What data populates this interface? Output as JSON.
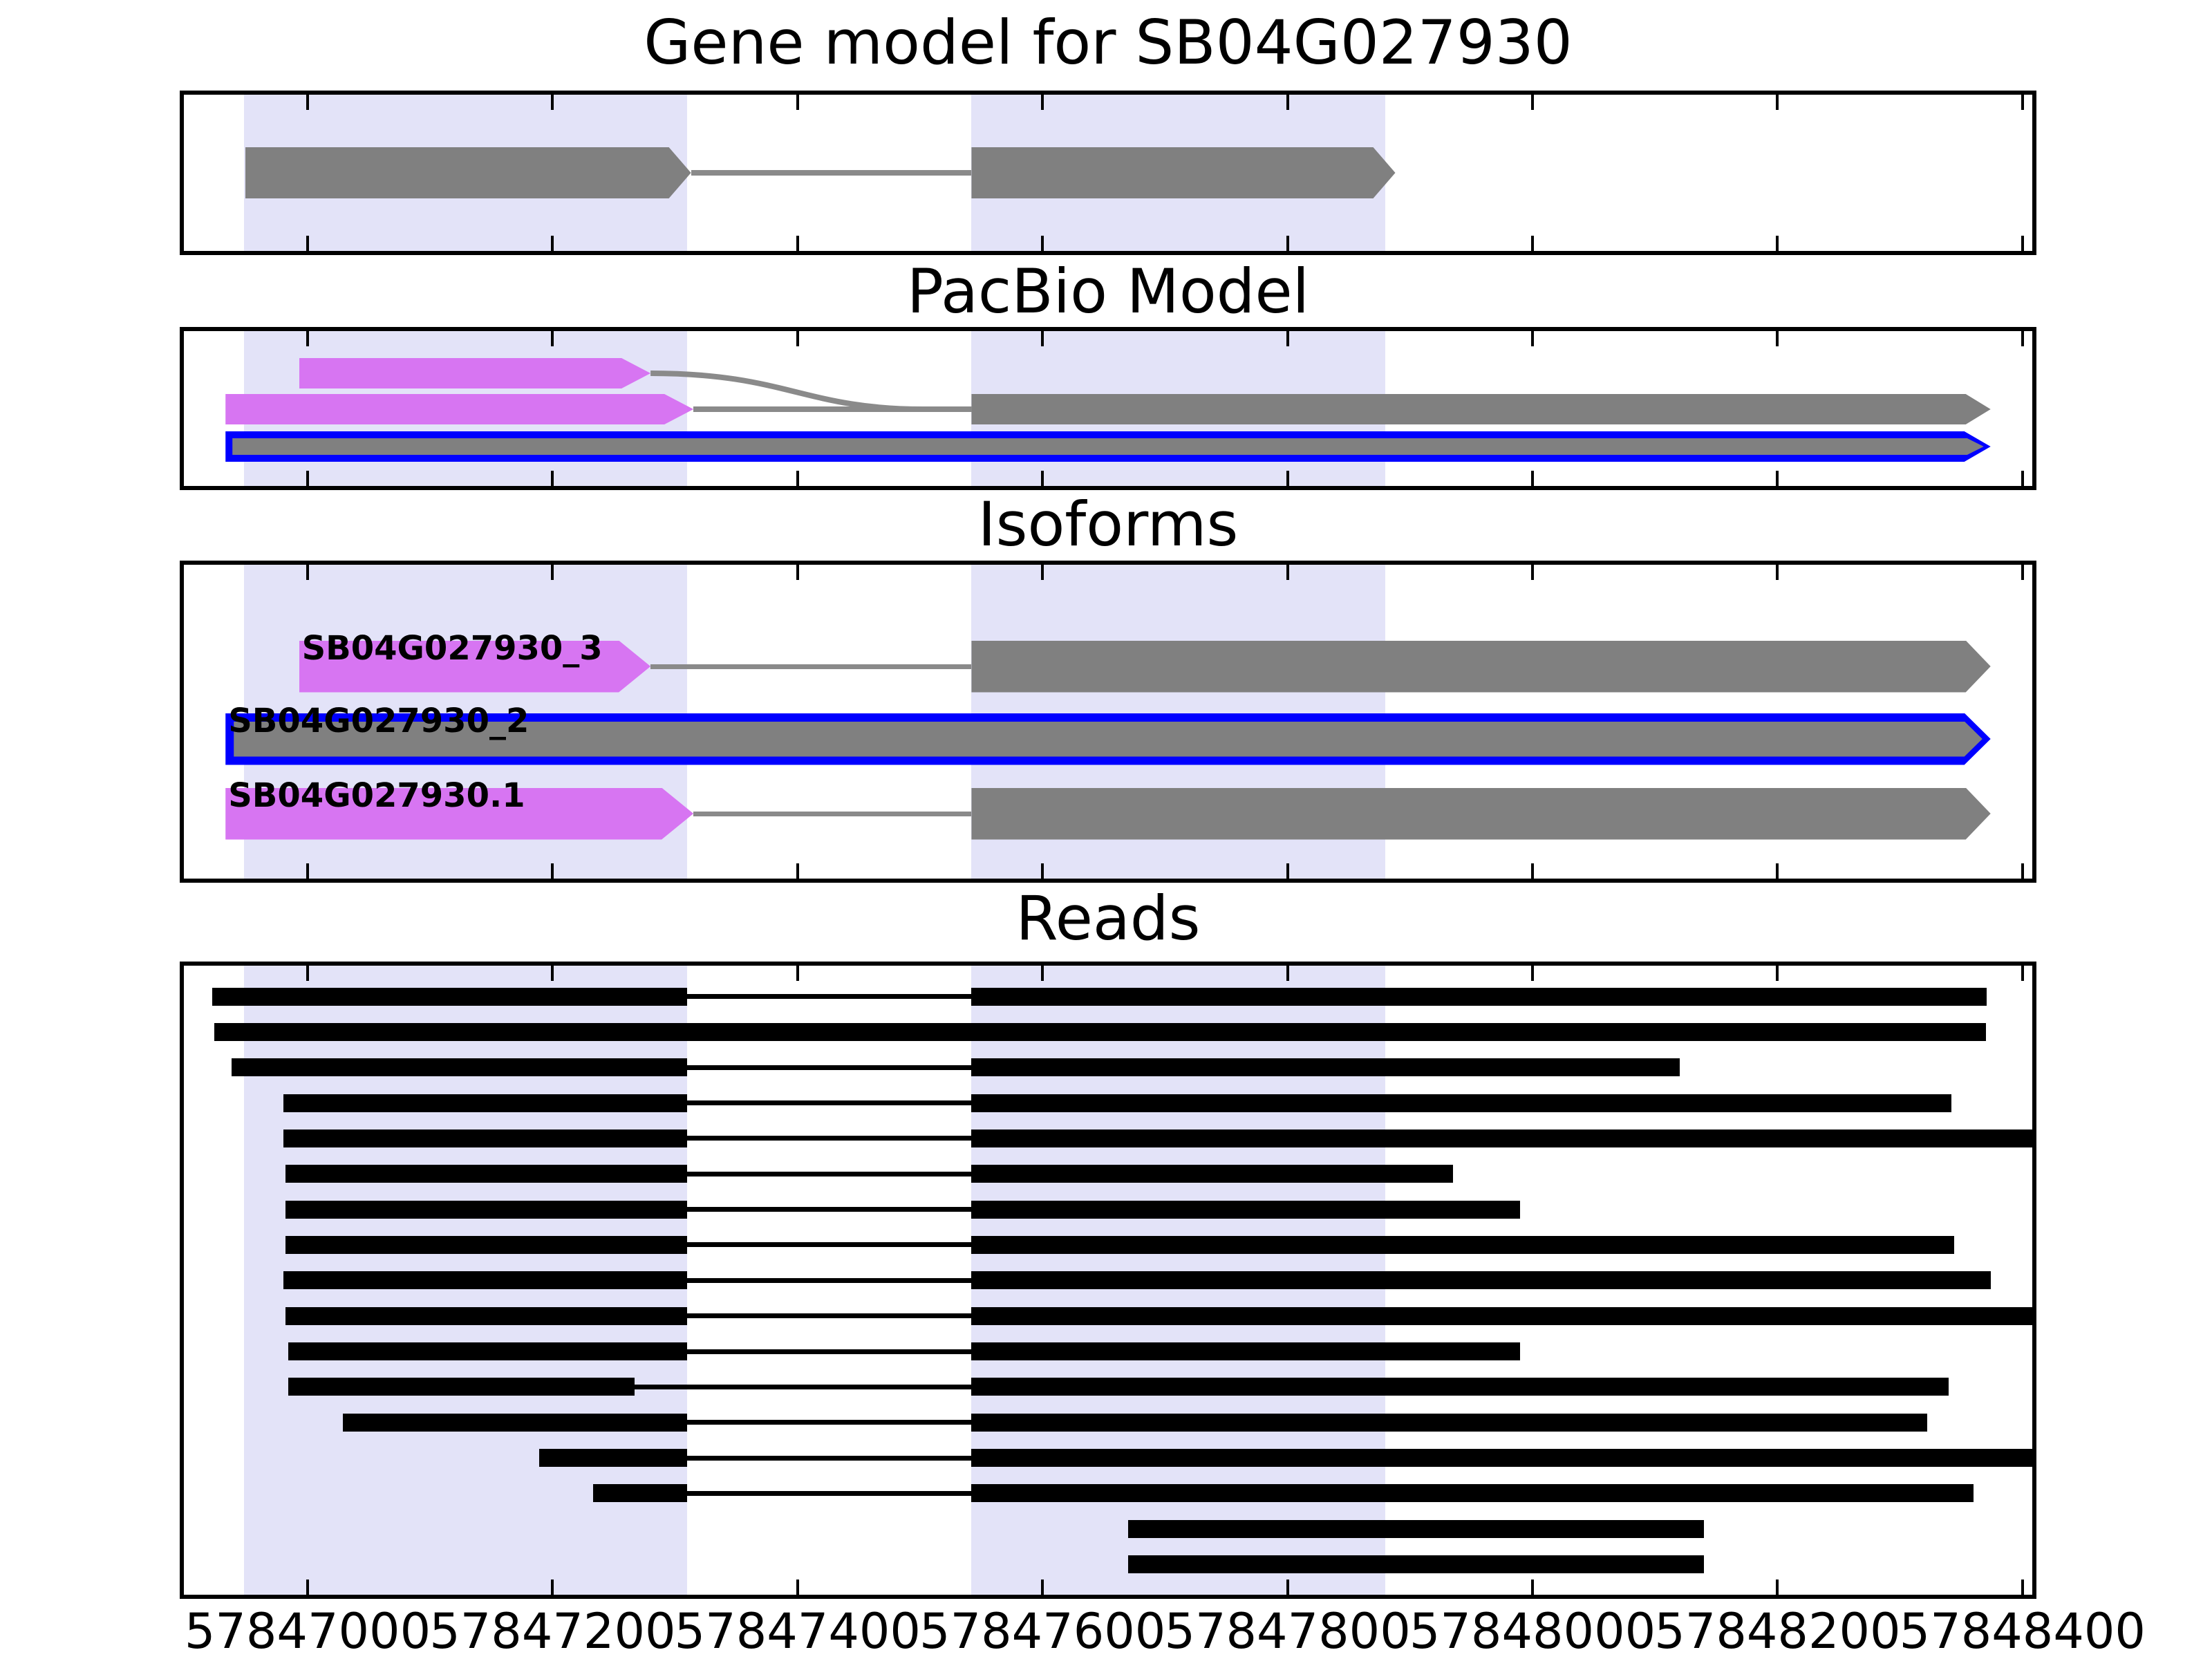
{
  "chart_data": {
    "type": "gene-model-tracks",
    "x_axis": {
      "min": 57846899,
      "max": 57848408,
      "ticks": [
        57847000,
        57847200,
        57847400,
        57847600,
        57847800,
        57848000,
        57848200,
        57848400
      ],
      "tick_labels": [
        "57847000",
        "57847200",
        "57847400",
        "57847600",
        "57847800",
        "57848000",
        "57848200",
        "57848400"
      ]
    },
    "highlight_regions": [
      {
        "start": 57846948,
        "end": 57847310
      },
      {
        "start": 57847542,
        "end": 57847880
      }
    ],
    "colors": {
      "gray": "#808080",
      "magenta": "#D775F2",
      "blue": "#0000FF",
      "lavender": "#E3E3F8",
      "gray_line": "#8A8A8A",
      "black": "#000000",
      "background": "#FFFFFF"
    },
    "panels": [
      {
        "id": "gene-model",
        "title": "Gene model for SB04G027930",
        "features": [
          {
            "kind": "line",
            "row": 0,
            "from": 57847313,
            "to": 57847542,
            "color": "gray_line"
          },
          {
            "kind": "arrow",
            "row": 0,
            "start": 57846949,
            "end": 57847313,
            "color": "gray"
          },
          {
            "kind": "arrow",
            "row": 0,
            "start": 57847542,
            "end": 57847888,
            "color": "gray"
          }
        ]
      },
      {
        "id": "pacbio-model",
        "title": "PacBio Model",
        "features": [
          {
            "kind": "curve",
            "from_row": 0,
            "to_row": 1,
            "from": 57847280,
            "to": 57847542,
            "color": "gray_line"
          },
          {
            "kind": "line",
            "row": 1,
            "from": 57847315,
            "to": 57847542,
            "color": "gray_line"
          },
          {
            "kind": "arrow",
            "row": 0,
            "start": 57846993,
            "end": 57847280,
            "color": "magenta"
          },
          {
            "kind": "arrow",
            "row": 1,
            "start": 57846933,
            "end": 57847315,
            "color": "magenta"
          },
          {
            "kind": "arrow",
            "row": 1,
            "start": 57847542,
            "end": 57848374,
            "color": "gray"
          },
          {
            "kind": "outlined_arrow",
            "row": 2,
            "start": 57846933,
            "end": 57848374,
            "color": "gray",
            "outline": "blue"
          }
        ]
      },
      {
        "id": "isoforms",
        "title": "Isoforms",
        "features": [
          {
            "kind": "line",
            "row": 0,
            "from": 57847280,
            "to": 57847542,
            "color": "gray_line"
          },
          {
            "kind": "arrow",
            "row": 0,
            "start": 57846993,
            "end": 57847280,
            "color": "magenta"
          },
          {
            "kind": "arrow",
            "row": 0,
            "start": 57847542,
            "end": 57848374,
            "color": "gray"
          },
          {
            "kind": "label",
            "row": 0,
            "text": "SB04G027930_3",
            "at": 57846993
          },
          {
            "kind": "outlined_arrow",
            "row": 1,
            "start": 57846933,
            "end": 57848374,
            "color": "gray",
            "outline": "blue"
          },
          {
            "kind": "label",
            "row": 1,
            "text": "SB04G027930_2",
            "at": 57846933
          },
          {
            "kind": "line",
            "row": 2,
            "from": 57847315,
            "to": 57847542,
            "color": "gray_line"
          },
          {
            "kind": "arrow",
            "row": 2,
            "start": 57846933,
            "end": 57847315,
            "color": "magenta"
          },
          {
            "kind": "arrow",
            "row": 2,
            "start": 57847542,
            "end": 57848374,
            "color": "gray"
          },
          {
            "kind": "label",
            "row": 2,
            "text": "SB04G027930.1",
            "at": 57846933
          }
        ]
      },
      {
        "id": "reads",
        "title": "Reads",
        "features": [
          {
            "kind": "read",
            "row": 0,
            "exons": [
              [
                57846922,
                57847310
              ],
              [
                57847542,
                57848371
              ]
            ]
          },
          {
            "kind": "read",
            "row": 1,
            "exons": [
              [
                57846924,
                57848370
              ]
            ]
          },
          {
            "kind": "read",
            "row": 2,
            "exons": [
              [
                57846938,
                57847310
              ],
              [
                57847542,
                57848120
              ]
            ]
          },
          {
            "kind": "read",
            "row": 3,
            "exons": [
              [
                57846980,
                57847310
              ],
              [
                57847542,
                57848342
              ]
            ]
          },
          {
            "kind": "read",
            "row": 4,
            "exons": [
              [
                57846980,
                57847310
              ],
              [
                57847542,
                57848408
              ]
            ]
          },
          {
            "kind": "read",
            "row": 5,
            "exons": [
              [
                57846982,
                57847310
              ],
              [
                57847542,
                57847935
              ]
            ]
          },
          {
            "kind": "read",
            "row": 6,
            "exons": [
              [
                57846982,
                57847310
              ],
              [
                57847542,
                57847990
              ]
            ]
          },
          {
            "kind": "read",
            "row": 7,
            "exons": [
              [
                57846982,
                57847310
              ],
              [
                57847542,
                57848344
              ]
            ]
          },
          {
            "kind": "read",
            "row": 8,
            "exons": [
              [
                57846980,
                57847310
              ],
              [
                57847542,
                57848374
              ]
            ]
          },
          {
            "kind": "read",
            "row": 9,
            "exons": [
              [
                57846982,
                57847310
              ],
              [
                57847542,
                57848408
              ]
            ]
          },
          {
            "kind": "read",
            "row": 10,
            "exons": [
              [
                57846984,
                57847310
              ],
              [
                57847542,
                57847990
              ]
            ]
          },
          {
            "kind": "read",
            "row": 11,
            "exons": [
              [
                57846984,
                57847267
              ],
              [
                57847542,
                57848340
              ]
            ]
          },
          {
            "kind": "read",
            "row": 12,
            "exons": [
              [
                57847029,
                57847310
              ],
              [
                57847542,
                57848322
              ]
            ]
          },
          {
            "kind": "read",
            "row": 13,
            "exons": [
              [
                57847189,
                57847310
              ],
              [
                57847542,
                57848408
              ]
            ]
          },
          {
            "kind": "read",
            "row": 14,
            "exons": [
              [
                57847233,
                57847310
              ],
              [
                57847542,
                57848360
              ]
            ]
          },
          {
            "kind": "read",
            "row": 15,
            "exons": [
              [
                57847670,
                57848140
              ]
            ]
          },
          {
            "kind": "read",
            "row": 16,
            "exons": [
              [
                57847670,
                57848140
              ]
            ]
          }
        ]
      }
    ]
  }
}
